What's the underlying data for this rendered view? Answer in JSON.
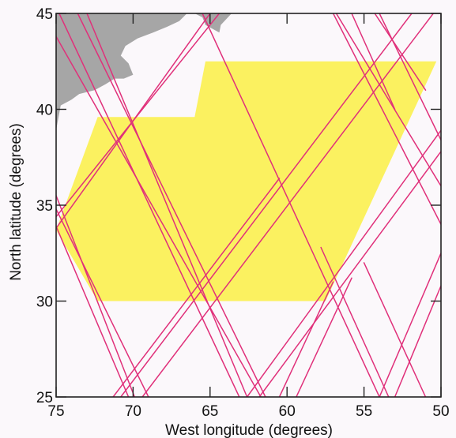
{
  "chart_data": {
    "type": "map",
    "xlabel": "West longitude (degrees)",
    "ylabel": "North latitude (degrees)",
    "xlim": [
      75,
      50
    ],
    "ylim": [
      25,
      45
    ],
    "x_ticks": [
      "75",
      "70",
      "65",
      "60",
      "55",
      "50"
    ],
    "y_ticks": [
      "25",
      "30",
      "35",
      "40",
      "45"
    ],
    "grid": false,
    "colors": {
      "background": "#fbf8fb",
      "land": "#a6a6a6",
      "region": "#fbf160",
      "tracks": "#e0307a",
      "axes": "#222222"
    },
    "region_outline_lonlat": [
      [
        75.0,
        33.7
      ],
      [
        72.3,
        39.6
      ],
      [
        66.0,
        39.6
      ],
      [
        65.3,
        42.5
      ],
      [
        50.3,
        42.5
      ],
      [
        57.5,
        30.0
      ],
      [
        72.3,
        30.0
      ],
      [
        75.0,
        33.7
      ]
    ],
    "coastline_lonlat": [
      [
        75.0,
        38.9
      ],
      [
        74.7,
        40.2
      ],
      [
        74.0,
        40.5
      ],
      [
        73.5,
        40.8
      ],
      [
        72.5,
        41.0
      ],
      [
        71.8,
        41.3
      ],
      [
        71.2,
        41.6
      ],
      [
        70.6,
        41.6
      ],
      [
        70.0,
        41.8
      ],
      [
        70.3,
        42.4
      ],
      [
        70.8,
        42.8
      ],
      [
        70.5,
        43.3
      ],
      [
        69.7,
        43.7
      ],
      [
        68.7,
        44.0
      ],
      [
        67.8,
        44.3
      ],
      [
        67.0,
        44.6
      ],
      [
        66.5,
        45.0
      ],
      [
        75.0,
        45.0
      ]
    ],
    "island_lonlat": [
      [
        66.0,
        45.0
      ],
      [
        65.5,
        44.8
      ],
      [
        65.3,
        44.4
      ],
      [
        64.4,
        44.0
      ],
      [
        64.3,
        44.4
      ],
      [
        63.6,
        45.0
      ]
    ],
    "ground_tracks_lonlat": [
      [
        [
          75.0,
          33.8
        ],
        [
          65.0,
          45.0
        ]
      ],
      [
        [
          75.0,
          34.4
        ],
        [
          64.4,
          45.0
        ]
      ],
      [
        [
          73.6,
          45.0
        ],
        [
          61.4,
          25.0
        ]
      ],
      [
        [
          74.8,
          45.0
        ],
        [
          63.1,
          25.0
        ]
      ],
      [
        [
          75.0,
          43.8
        ],
        [
          61.7,
          25.0
        ]
      ],
      [
        [
          75.0,
          34.8
        ],
        [
          69.0,
          25.0
        ]
      ],
      [
        [
          75.0,
          33.9
        ],
        [
          70.3,
          25.0
        ]
      ],
      [
        [
          75.0,
          35.5
        ],
        [
          69.9,
          25.0
        ]
      ],
      [
        [
          70.8,
          25.0
        ],
        [
          51.9,
          45.0
        ]
      ],
      [
        [
          69.4,
          25.0
        ],
        [
          50.5,
          45.0
        ]
      ],
      [
        [
          62.6,
          25.0
        ],
        [
          50.0,
          38.9
        ]
      ],
      [
        [
          61.8,
          25.0
        ],
        [
          50.0,
          37.8
        ]
      ],
      [
        [
          71.3,
          25.0
        ],
        [
          60.5,
          36.4
        ]
      ],
      [
        [
          73.0,
          45.0
        ],
        [
          62.6,
          25.0
        ]
      ],
      [
        [
          57.0,
          45.0
        ],
        [
          50.0,
          34.0
        ]
      ],
      [
        [
          56.8,
          45.0
        ],
        [
          50.0,
          36.0
        ]
      ],
      [
        [
          54.3,
          45.0
        ],
        [
          51.0,
          41.0
        ]
      ],
      [
        [
          54.0,
          25.0
        ],
        [
          50.0,
          32.5
        ]
      ],
      [
        [
          53.0,
          25.0
        ],
        [
          50.0,
          30.8
        ]
      ],
      [
        [
          59.4,
          25.0
        ],
        [
          55.8,
          31.2
        ]
      ],
      [
        [
          54.0,
          45.0
        ],
        [
          50.0,
          38.4
        ]
      ],
      [
        [
          60.5,
          25.0
        ],
        [
          57.0,
          31.0
        ]
      ],
      [
        [
          55.8,
          45.0
        ],
        [
          53.0,
          40.0
        ]
      ],
      [
        [
          65.5,
          45.0
        ],
        [
          54.0,
          25.0
        ]
      ],
      [
        [
          53.4,
          25.0
        ],
        [
          57.8,
          32.8
        ]
      ],
      [
        [
          51.0,
          25.0
        ],
        [
          55.0,
          32.0
        ]
      ]
    ]
  }
}
